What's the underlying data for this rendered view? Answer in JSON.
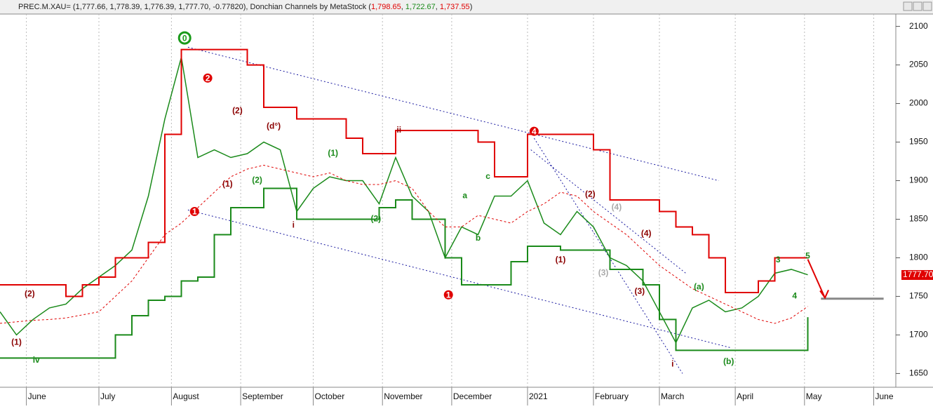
{
  "header": {
    "symbol": "PREC.M.XAU= (1,777.66, 1,778.39, 1,776.39, 1,777.70, -0.77820), Donchian Channels by MetaStock (",
    "upper": "1,798.65",
    "lower": "1,722.67",
    "middle": "1,737.55",
    "close": ")"
  },
  "chart_data": {
    "type": "line",
    "x": [
      0,
      5,
      10,
      15,
      20,
      25,
      30,
      35,
      40,
      45,
      50,
      55,
      60,
      65,
      70,
      75,
      80,
      85,
      90,
      95,
      100,
      105,
      110,
      115,
      120,
      125,
      130,
      135,
      140,
      145,
      150,
      155,
      160,
      165,
      170,
      175,
      180,
      185,
      190,
      195,
      200,
      205,
      210,
      215,
      220,
      225,
      230,
      235,
      240,
      245
    ],
    "xlim": [
      0,
      271.7
    ],
    "xticks": [
      {
        "value": 8,
        "label": "June"
      },
      {
        "value": 30,
        "label": "July"
      },
      {
        "value": 52,
        "label": "August"
      },
      {
        "value": 73,
        "label": "September"
      },
      {
        "value": 95,
        "label": "October"
      },
      {
        "value": 116,
        "label": "November"
      },
      {
        "value": 137,
        "label": "December"
      },
      {
        "value": 160,
        "label": "2021"
      },
      {
        "value": 180,
        "label": "February"
      },
      {
        "value": 200,
        "label": "March"
      },
      {
        "value": 223,
        "label": "April"
      },
      {
        "value": 244,
        "label": "May"
      },
      {
        "value": 265,
        "label": "June"
      }
    ],
    "ylim": [
      1634,
      2116
    ],
    "yticks": [
      1650,
      1700,
      1750,
      1800,
      1850,
      1900,
      1950,
      2000,
      2050,
      2100
    ],
    "grid": true,
    "series": [
      {
        "color": "#1a8a1a",
        "width": 1.5,
        "dash": "none",
        "values": [
          1730,
          1700,
          1720,
          1735,
          1740,
          1760,
          1775,
          1790,
          1810,
          1880,
          1980,
          2060,
          1930,
          1940,
          1930,
          1935,
          1950,
          1940,
          1860,
          1890,
          1905,
          1900,
          1900,
          1870,
          1930,
          1880,
          1860,
          1800,
          1840,
          1830,
          1880,
          1880,
          1900,
          1845,
          1830,
          1860,
          1840,
          1800,
          1790,
          1770,
          1730,
          1690,
          1735,
          1745,
          1730,
          1735,
          1750,
          1780,
          1785,
          1778
        ]
      },
      {
        "color": "#e00000",
        "width": 2,
        "dash": "none",
        "step": true,
        "values": [
          1765,
          1765,
          1765,
          1765,
          1750,
          1765,
          1775,
          1800,
          1800,
          1820,
          1960,
          2070,
          2070,
          2070,
          2070,
          2050,
          1995,
          1995,
          1980,
          1980,
          1980,
          1955,
          1935,
          1935,
          1965,
          1965,
          1965,
          1965,
          1965,
          1950,
          1905,
          1905,
          1960,
          1960,
          1960,
          1960,
          1940,
          1875,
          1875,
          1875,
          1860,
          1840,
          1830,
          1800,
          1755,
          1755,
          1770,
          1800,
          1800,
          1800
        ]
      },
      {
        "color": "#1a8a1a",
        "width": 2,
        "dash": "none",
        "step": true,
        "values": [
          1670,
          1670,
          1670,
          1670,
          1670,
          1670,
          1670,
          1700,
          1725,
          1745,
          1750,
          1770,
          1775,
          1830,
          1865,
          1865,
          1890,
          1890,
          1850,
          1850,
          1850,
          1850,
          1850,
          1865,
          1875,
          1850,
          1850,
          1800,
          1765,
          1765,
          1765,
          1795,
          1815,
          1815,
          1810,
          1810,
          1810,
          1785,
          1785,
          1765,
          1720,
          1680,
          1680,
          1680,
          1680,
          1680,
          1680,
          1680,
          1680,
          1723
        ]
      },
      {
        "color": "#e00000",
        "width": 1,
        "dash": "3 3",
        "values": [
          1715,
          1717,
          1719,
          1720,
          1722,
          1726,
          1730,
          1750,
          1770,
          1800,
          1830,
          1845,
          1865,
          1885,
          1905,
          1915,
          1920,
          1915,
          1910,
          1905,
          1910,
          1900,
          1895,
          1895,
          1900,
          1890,
          1860,
          1840,
          1840,
          1855,
          1850,
          1845,
          1860,
          1870,
          1885,
          1880,
          1860,
          1845,
          1830,
          1810,
          1790,
          1775,
          1760,
          1750,
          1740,
          1730,
          1720,
          1715,
          1722,
          1737
        ]
      }
    ],
    "trendlines": [
      {
        "color": "#1a1aa0",
        "x": [
          57,
          218
        ],
        "y": [
          2073,
          1900
        ]
      },
      {
        "color": "#1a1aa0",
        "x": [
          57,
          222
        ],
        "y": [
          1862,
          1683
        ]
      },
      {
        "color": "#1a1aa0",
        "x": [
          162,
          207
        ],
        "y": [
          1955,
          1650
        ]
      },
      {
        "color": "#1a1aa0",
        "x": [
          161,
          208
        ],
        "y": [
          1940,
          1780
        ]
      }
    ],
    "last_price_label": "1777.705",
    "last_price": 1777.705,
    "annotations": [
      {
        "text": "0",
        "x": 56,
        "y": 2085,
        "color": "#1a9a1a",
        "style": "circle"
      },
      {
        "text": "2",
        "x": 63,
        "y": 2033,
        "color": "#e00000",
        "style": "circle"
      },
      {
        "text": "1",
        "x": 59,
        "y": 1860,
        "color": "#e00000",
        "style": "circle"
      },
      {
        "text": "1",
        "x": 136,
        "y": 1752,
        "color": "#e00000",
        "style": "circle"
      },
      {
        "text": "4",
        "x": 162,
        "y": 1964,
        "color": "#e00000",
        "style": "circle"
      },
      {
        "text": "(2)",
        "x": 72,
        "y": 1990,
        "color": "#8b0000",
        "style": "text"
      },
      {
        "text": "(d°)",
        "x": 83,
        "y": 1970,
        "color": "#8b0000",
        "style": "text"
      },
      {
        "text": "ii",
        "x": 121,
        "y": 1965,
        "color": "#8b0000",
        "style": "text"
      },
      {
        "text": "i",
        "x": 89,
        "y": 1842,
        "color": "#8b0000",
        "style": "text"
      },
      {
        "text": "(2)",
        "x": 114,
        "y": 1850,
        "color": "#1a8a1a",
        "style": "text"
      },
      {
        "text": "(1)",
        "x": 101,
        "y": 1935,
        "color": "#1a8a1a",
        "style": "text"
      },
      {
        "text": "(2)",
        "x": 78,
        "y": 1900,
        "color": "#1a8a1a",
        "style": "text"
      },
      {
        "text": "(1)",
        "x": 69,
        "y": 1895,
        "color": "#8b0000",
        "style": "text"
      },
      {
        "text": "(3)",
        "x": 183,
        "y": 1780,
        "color": "#aaaaaa",
        "style": "text"
      },
      {
        "text": "(4)",
        "x": 196,
        "y": 1831,
        "color": "#8b0000",
        "style": "text"
      },
      {
        "text": "(3)",
        "x": 194,
        "y": 1756,
        "color": "#8b0000",
        "style": "text"
      },
      {
        "text": "(a)",
        "x": 212,
        "y": 1762,
        "color": "#1a8a1a",
        "style": "text"
      },
      {
        "text": "(b)",
        "x": 221,
        "y": 1665,
        "color": "#1a8a1a",
        "style": "text"
      },
      {
        "text": "i",
        "x": 204,
        "y": 1662,
        "color": "#8b0000",
        "style": "text"
      },
      {
        "text": "iv",
        "x": 11,
        "y": 1667,
        "color": "#1a8a1a",
        "style": "text"
      },
      {
        "text": "(2)",
        "x": 9,
        "y": 1753,
        "color": "#8b0000",
        "style": "text"
      },
      {
        "text": "(1)",
        "x": 5,
        "y": 1690,
        "color": "#8b0000",
        "style": "text"
      },
      {
        "text": "(2)",
        "x": 179,
        "y": 1882,
        "color": "#8b0000",
        "style": "text"
      },
      {
        "text": "(1)",
        "x": 170,
        "y": 1797,
        "color": "#8b0000",
        "style": "text"
      },
      {
        "text": "(4)",
        "x": 187,
        "y": 1865,
        "color": "#aaaaaa",
        "style": "text"
      },
      {
        "text": "c",
        "x": 148,
        "y": 1905,
        "color": "#1a8a1a",
        "style": "text"
      },
      {
        "text": "a",
        "x": 141,
        "y": 1880,
        "color": "#1a8a1a",
        "style": "text"
      },
      {
        "text": "b",
        "x": 145,
        "y": 1825,
        "color": "#1a8a1a",
        "style": "text"
      },
      {
        "text": "3",
        "x": 236,
        "y": 1797,
        "color": "#1a8a1a",
        "style": "text"
      },
      {
        "text": "5",
        "x": 245,
        "y": 1802,
        "color": "#1a8a1a",
        "style": "text"
      },
      {
        "text": "4",
        "x": 241,
        "y": 1750,
        "color": "#1a8a1a",
        "style": "text"
      }
    ],
    "target_arrow": {
      "x": [
        245,
        250
      ],
      "y": [
        1798,
        1750
      ],
      "color": "#e00000"
    },
    "target_line": {
      "x": [
        249,
        268
      ],
      "y": [
        1747,
        1747
      ],
      "color": "#888888"
    }
  }
}
